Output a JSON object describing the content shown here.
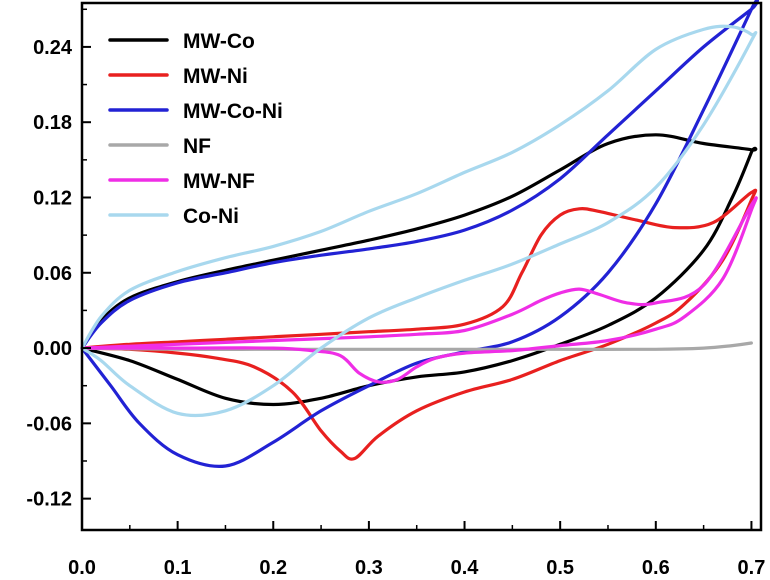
{
  "chart_data": {
    "type": "line",
    "title": "",
    "xlabel": "",
    "ylabel": "",
    "xlim": [
      0.0,
      0.71
    ],
    "ylim": [
      -0.145,
      0.275
    ],
    "x_ticks": [
      0.0,
      0.1,
      0.2,
      0.3,
      0.4,
      0.5,
      0.6,
      0.7
    ],
    "x_tick_labels": [
      "0.0",
      "0.1",
      "0.2",
      "0.3",
      "0.4",
      "0.5",
      "0.6",
      "0.7"
    ],
    "y_ticks": [
      -0.12,
      -0.06,
      0.0,
      0.06,
      0.12,
      0.18,
      0.24
    ],
    "y_tick_labels": [
      "-0.12",
      "-0.06",
      "0.00",
      "0.06",
      "0.12",
      "0.18",
      "0.24"
    ],
    "grid": false,
    "legend": {
      "placement": "top-left"
    },
    "series": [
      {
        "name": "MW-Co",
        "color": "#000000",
        "x": [
          0.0,
          0.02,
          0.05,
          0.1,
          0.15,
          0.2,
          0.25,
          0.3,
          0.35,
          0.4,
          0.45,
          0.5,
          0.55,
          0.6,
          0.65,
          0.7,
          0.7,
          0.68,
          0.65,
          0.6,
          0.55,
          0.5,
          0.45,
          0.4,
          0.35,
          0.3,
          0.25,
          0.2,
          0.15,
          0.1,
          0.05,
          0.0
        ],
        "y": [
          0.0,
          0.022,
          0.04,
          0.053,
          0.062,
          0.07,
          0.078,
          0.086,
          0.095,
          0.106,
          0.121,
          0.142,
          0.163,
          0.17,
          0.163,
          0.158,
          0.156,
          0.12,
          0.078,
          0.04,
          0.018,
          0.003,
          -0.01,
          -0.019,
          -0.023,
          -0.03,
          -0.04,
          -0.045,
          -0.04,
          -0.025,
          -0.01,
          0.0
        ]
      },
      {
        "name": "MW-Ni",
        "color": "#e8201f",
        "x": [
          0.0,
          0.05,
          0.1,
          0.15,
          0.2,
          0.25,
          0.3,
          0.35,
          0.4,
          0.44,
          0.46,
          0.48,
          0.5,
          0.52,
          0.54,
          0.58,
          0.62,
          0.66,
          0.7,
          0.7,
          0.67,
          0.63,
          0.6,
          0.55,
          0.5,
          0.45,
          0.4,
          0.35,
          0.31,
          0.285,
          0.27,
          0.25,
          0.22,
          0.18,
          0.14,
          0.1,
          0.05,
          0.0
        ],
        "y": [
          0.0,
          0.003,
          0.005,
          0.007,
          0.009,
          0.011,
          0.013,
          0.015,
          0.019,
          0.033,
          0.06,
          0.09,
          0.106,
          0.111,
          0.109,
          0.102,
          0.096,
          0.1,
          0.124,
          0.118,
          0.07,
          0.035,
          0.02,
          0.003,
          -0.01,
          -0.025,
          -0.035,
          -0.05,
          -0.07,
          -0.088,
          -0.082,
          -0.066,
          -0.035,
          -0.015,
          -0.008,
          -0.004,
          -0.001,
          0.0
        ]
      },
      {
        "name": "MW-Co-Ni",
        "color": "#2222d4",
        "x": [
          0.0,
          0.02,
          0.05,
          0.1,
          0.15,
          0.2,
          0.25,
          0.3,
          0.35,
          0.4,
          0.45,
          0.5,
          0.55,
          0.6,
          0.65,
          0.7,
          0.7,
          0.65,
          0.6,
          0.55,
          0.5,
          0.45,
          0.4,
          0.35,
          0.3,
          0.25,
          0.2,
          0.15,
          0.1,
          0.06,
          0.03,
          0.0
        ],
        "y": [
          0.0,
          0.02,
          0.038,
          0.052,
          0.06,
          0.068,
          0.074,
          0.079,
          0.085,
          0.094,
          0.11,
          0.135,
          0.17,
          0.205,
          0.24,
          0.27,
          0.27,
          0.19,
          0.115,
          0.06,
          0.025,
          0.005,
          -0.003,
          -0.012,
          -0.03,
          -0.05,
          -0.075,
          -0.094,
          -0.085,
          -0.06,
          -0.03,
          0.0
        ]
      },
      {
        "name": "NF",
        "color": "#a8a8a8",
        "x": [
          0.0,
          0.1,
          0.2,
          0.3,
          0.4,
          0.5,
          0.6,
          0.65,
          0.68,
          0.7
        ],
        "y": [
          0.0,
          -0.001,
          -0.001,
          -0.001,
          -0.001,
          -0.001,
          -0.001,
          0.0,
          0.002,
          0.004
        ]
      },
      {
        "name": "MW-NF",
        "color": "#ef2ee6",
        "x": [
          0.0,
          0.1,
          0.2,
          0.3,
          0.35,
          0.4,
          0.45,
          0.48,
          0.5,
          0.52,
          0.54,
          0.57,
          0.6,
          0.65,
          0.7,
          0.7,
          0.67,
          0.63,
          0.6,
          0.55,
          0.5,
          0.45,
          0.4,
          0.37,
          0.35,
          0.33,
          0.31,
          0.29,
          0.27,
          0.24,
          0.2,
          0.1,
          0.0
        ],
        "y": [
          0.0,
          0.003,
          0.006,
          0.009,
          0.011,
          0.014,
          0.027,
          0.038,
          0.044,
          0.047,
          0.043,
          0.036,
          0.036,
          0.05,
          0.114,
          0.11,
          0.055,
          0.025,
          0.015,
          0.006,
          0.002,
          -0.002,
          -0.004,
          -0.008,
          -0.015,
          -0.025,
          -0.027,
          -0.02,
          -0.006,
          -0.002,
          0.0,
          0.0,
          0.0
        ]
      },
      {
        "name": "Co-Ni",
        "color": "#a8d8ee",
        "x": [
          0.0,
          0.02,
          0.05,
          0.1,
          0.15,
          0.2,
          0.25,
          0.3,
          0.35,
          0.4,
          0.45,
          0.5,
          0.55,
          0.6,
          0.65,
          0.68,
          0.7,
          0.7,
          0.65,
          0.6,
          0.55,
          0.5,
          0.45,
          0.4,
          0.35,
          0.3,
          0.25,
          0.2,
          0.15,
          0.1,
          0.05,
          0.02,
          0.0
        ],
        "y": [
          0.0,
          0.025,
          0.046,
          0.061,
          0.072,
          0.081,
          0.093,
          0.109,
          0.123,
          0.14,
          0.156,
          0.178,
          0.205,
          0.238,
          0.254,
          0.256,
          0.25,
          0.245,
          0.178,
          0.128,
          0.1,
          0.083,
          0.067,
          0.054,
          0.04,
          0.024,
          0.0,
          -0.03,
          -0.05,
          -0.052,
          -0.03,
          -0.01,
          0.0
        ]
      }
    ]
  }
}
